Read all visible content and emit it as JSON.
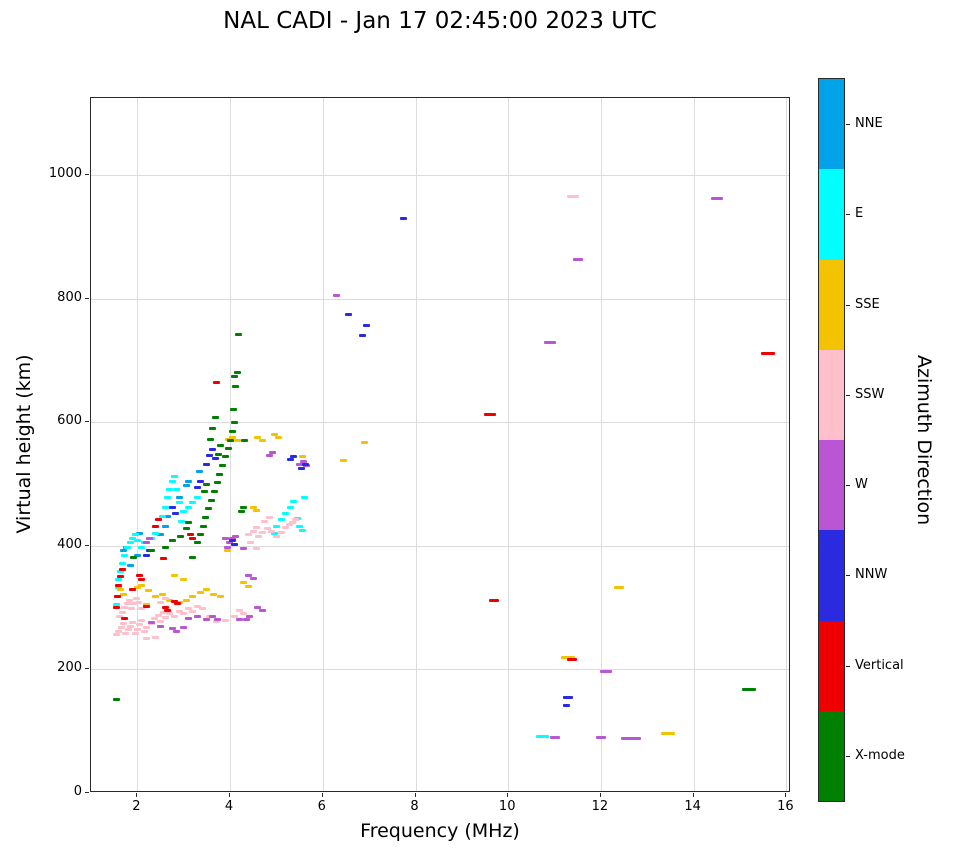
{
  "chart_data": {
    "type": "scatter",
    "title": "NAL CADI - Jan 17 02:45:00 2023 UTC",
    "xlabel": "Frequency (MHz)",
    "ylabel": "Virtual height (km)",
    "xlim": [
      1,
      16.1
    ],
    "ylim": [
      0,
      1125
    ],
    "xticks": [
      2,
      4,
      6,
      8,
      10,
      12,
      14,
      16
    ],
    "yticks": [
      0,
      200,
      400,
      600,
      800,
      1000
    ],
    "grid": true,
    "marker": "horizontal-dash",
    "colorbar": {
      "label": "Azimuth Direction",
      "categories_top_to_bottom": [
        {
          "label": "NNE",
          "color": "#00a2e8"
        },
        {
          "label": "E",
          "color": "#00ffff"
        },
        {
          "label": "SSE",
          "color": "#f3c300"
        },
        {
          "label": "SSW",
          "color": "#ffc0cb"
        },
        {
          "label": "W",
          "color": "#ba55d3"
        },
        {
          "label": "NNW",
          "color": "#2a2ae0"
        },
        {
          "label": "Vertical",
          "color": "#ee0000"
        },
        {
          "label": "X-mode",
          "color": "#008000"
        }
      ]
    },
    "series": [
      {
        "name": "NNE",
        "color": "#00a2e8",
        "points": [
          [
            1.7,
            392
          ],
          [
            1.76,
            398
          ],
          [
            2.05,
            420
          ],
          [
            2.5,
            418
          ],
          [
            2.6,
            432
          ],
          [
            2.66,
            448
          ],
          [
            2.9,
            478
          ],
          [
            3.05,
            498
          ],
          [
            3.1,
            505
          ],
          [
            3.35,
            520
          ],
          [
            2.0,
            385
          ],
          [
            1.85,
            368
          ]
        ]
      },
      {
        "name": "E",
        "color": "#00ffff",
        "points": [
          [
            1.58,
            318
          ],
          [
            1.6,
            332
          ],
          [
            1.6,
            345
          ],
          [
            1.63,
            358
          ],
          [
            1.68,
            372
          ],
          [
            1.72,
            385
          ],
          [
            1.78,
            398
          ],
          [
            1.85,
            405
          ],
          [
            1.9,
            412
          ],
          [
            1.96,
            418
          ],
          [
            2.0,
            408
          ],
          [
            2.1,
            398
          ],
          [
            2.16,
            405
          ],
          [
            2.3,
            412
          ],
          [
            2.4,
            420
          ],
          [
            2.55,
            448
          ],
          [
            2.6,
            462
          ],
          [
            2.65,
            478
          ],
          [
            2.7,
            492
          ],
          [
            2.75,
            505
          ],
          [
            2.8,
            512
          ],
          [
            2.85,
            492
          ],
          [
            2.9,
            470
          ],
          [
            3.0,
            455
          ],
          [
            3.1,
            462
          ],
          [
            3.2,
            470
          ],
          [
            2.96,
            440
          ],
          [
            3.3,
            478
          ],
          [
            4.95,
            420
          ],
          [
            5.0,
            432
          ],
          [
            5.1,
            442
          ],
          [
            5.2,
            452
          ],
          [
            5.3,
            462
          ],
          [
            5.36,
            472
          ],
          [
            5.45,
            445
          ],
          [
            5.5,
            432
          ],
          [
            5.56,
            425
          ],
          [
            5.6,
            478
          ],
          [
            10.75,
            92,
            13
          ],
          [
            1.55,
            305
          ]
        ]
      },
      {
        "name": "SSE",
        "color": "#f3c300",
        "points": [
          [
            1.63,
            330
          ],
          [
            1.7,
            322
          ],
          [
            2.0,
            332
          ],
          [
            2.1,
            336
          ],
          [
            2.25,
            328
          ],
          [
            2.4,
            318
          ],
          [
            2.55,
            322
          ],
          [
            2.7,
            312
          ],
          [
            2.9,
            308
          ],
          [
            3.05,
            312
          ],
          [
            3.2,
            318
          ],
          [
            3.36,
            325
          ],
          [
            3.5,
            330
          ],
          [
            3.65,
            322
          ],
          [
            3.8,
            318
          ],
          [
            3.95,
            393
          ],
          [
            3.96,
            572
          ],
          [
            4.06,
            576
          ],
          [
            4.16,
            570
          ],
          [
            4.6,
            576
          ],
          [
            4.7,
            570
          ],
          [
            4.95,
            580
          ],
          [
            5.05,
            575
          ],
          [
            5.56,
            545
          ],
          [
            6.45,
            538
          ],
          [
            6.9,
            568
          ],
          [
            12.4,
            333,
            10
          ],
          [
            11.3,
            220,
            14
          ],
          [
            13.45,
            97,
            14
          ],
          [
            3.0,
            345
          ],
          [
            2.8,
            352
          ],
          [
            4.3,
            340
          ],
          [
            4.4,
            335
          ],
          [
            2.2,
            305
          ],
          [
            4.5,
            462
          ],
          [
            4.56,
            458
          ]
        ]
      },
      {
        "name": "SSW",
        "color": "#ffc0cb",
        "points": [
          [
            1.55,
            256
          ],
          [
            1.6,
            262
          ],
          [
            1.65,
            268
          ],
          [
            1.7,
            274
          ],
          [
            1.75,
            258
          ],
          [
            1.8,
            264
          ],
          [
            1.85,
            270
          ],
          [
            1.9,
            276
          ],
          [
            1.95,
            258
          ],
          [
            2.0,
            264
          ],
          [
            2.05,
            272
          ],
          [
            2.1,
            280
          ],
          [
            2.15,
            262
          ],
          [
            2.2,
            268
          ],
          [
            2.3,
            274
          ],
          [
            2.36,
            282
          ],
          [
            2.45,
            288
          ],
          [
            2.5,
            278
          ],
          [
            2.56,
            292
          ],
          [
            2.6,
            284
          ],
          [
            2.7,
            290
          ],
          [
            2.8,
            286
          ],
          [
            2.9,
            294
          ],
          [
            3.0,
            290
          ],
          [
            3.1,
            298
          ],
          [
            3.2,
            294
          ],
          [
            3.3,
            302
          ],
          [
            3.4,
            298
          ],
          [
            1.62,
            286
          ],
          [
            1.68,
            292
          ],
          [
            1.72,
            300
          ],
          [
            1.78,
            306
          ],
          [
            1.82,
            312
          ],
          [
            1.88,
            298
          ],
          [
            1.92,
            306
          ],
          [
            1.98,
            315
          ],
          [
            2.02,
            308
          ],
          [
            2.08,
            298
          ],
          [
            2.5,
            308
          ],
          [
            2.6,
            315
          ],
          [
            4.4,
            418
          ],
          [
            4.5,
            424
          ],
          [
            4.56,
            430
          ],
          [
            4.62,
            415
          ],
          [
            4.7,
            421
          ],
          [
            4.8,
            428
          ],
          [
            4.9,
            424
          ],
          [
            5.0,
            416
          ],
          [
            5.1,
            421
          ],
          [
            5.2,
            429
          ],
          [
            5.28,
            434
          ],
          [
            4.45,
            405
          ],
          [
            4.58,
            396
          ],
          [
            4.75,
            440
          ],
          [
            4.85,
            446
          ],
          [
            5.35,
            438
          ],
          [
            5.42,
            442
          ],
          [
            11.4,
            965,
            12
          ],
          [
            4.2,
            295
          ],
          [
            4.3,
            290
          ],
          [
            4.1,
            285
          ],
          [
            3.9,
            280
          ],
          [
            3.7,
            278
          ],
          [
            3.56,
            285
          ],
          [
            2.4,
            252
          ],
          [
            2.2,
            250
          ]
        ]
      },
      {
        "name": "W",
        "color": "#ba55d3",
        "points": [
          [
            2.3,
            276
          ],
          [
            2.5,
            270
          ],
          [
            2.75,
            266
          ],
          [
            3.1,
            282
          ],
          [
            3.3,
            286
          ],
          [
            3.5,
            281
          ],
          [
            3.62,
            286
          ],
          [
            3.72,
            281
          ],
          [
            3.9,
            412
          ],
          [
            3.98,
            406
          ],
          [
            4.05,
            412
          ],
          [
            4.12,
            416
          ],
          [
            3.95,
            398
          ],
          [
            4.3,
            396
          ],
          [
            4.36,
            281
          ],
          [
            4.42,
            286
          ],
          [
            4.2,
            281
          ],
          [
            5.5,
            532
          ],
          [
            5.58,
            536
          ],
          [
            4.85,
            546
          ],
          [
            4.92,
            551
          ],
          [
            4.4,
            352
          ],
          [
            4.5,
            348
          ],
          [
            6.3,
            805
          ],
          [
            11.5,
            863,
            10
          ],
          [
            10.9,
            730,
            12
          ],
          [
            14.5,
            963,
            12
          ],
          [
            12.1,
            197,
            12
          ],
          [
            12.0,
            90,
            10
          ],
          [
            12.65,
            88,
            20
          ],
          [
            11.0,
            90,
            10
          ],
          [
            2.85,
            262
          ],
          [
            3.0,
            268
          ],
          [
            4.6,
            300
          ],
          [
            4.7,
            295
          ],
          [
            2.2,
            405
          ],
          [
            2.26,
            412
          ],
          [
            5.65,
            530
          ]
        ]
      },
      {
        "name": "NNW",
        "color": "#2a2ae0",
        "points": [
          [
            3.5,
            532
          ],
          [
            3.56,
            546
          ],
          [
            3.62,
            556
          ],
          [
            3.68,
            541
          ],
          [
            2.75,
            462
          ],
          [
            2.82,
            452
          ],
          [
            5.55,
            526
          ],
          [
            5.62,
            531
          ],
          [
            4.05,
            408
          ],
          [
            4.1,
            403
          ],
          [
            6.55,
            775
          ],
          [
            6.85,
            740
          ],
          [
            6.95,
            757
          ],
          [
            7.75,
            930
          ],
          [
            11.3,
            155,
            10
          ],
          [
            11.25,
            142
          ],
          [
            3.3,
            495
          ],
          [
            3.36,
            505
          ],
          [
            2.2,
            385
          ],
          [
            2.26,
            392
          ],
          [
            5.3,
            540
          ],
          [
            5.36,
            545
          ]
        ]
      },
      {
        "name": "Vertical",
        "color": "#ee0000",
        "points": [
          [
            1.55,
            300
          ],
          [
            1.58,
            318
          ],
          [
            1.6,
            336
          ],
          [
            1.64,
            350
          ],
          [
            1.68,
            362
          ],
          [
            2.4,
            432
          ],
          [
            2.46,
            442
          ],
          [
            2.2,
            302
          ],
          [
            2.6,
            300
          ],
          [
            2.66,
            296
          ],
          [
            2.8,
            310
          ],
          [
            2.86,
            306
          ],
          [
            3.7,
            665
          ],
          [
            9.6,
            612,
            12
          ],
          [
            9.7,
            312,
            10
          ],
          [
            15.6,
            712,
            14
          ],
          [
            11.38,
            216,
            10
          ],
          [
            2.05,
            352
          ],
          [
            2.1,
            345
          ],
          [
            1.9,
            330
          ],
          [
            3.15,
            418
          ],
          [
            3.2,
            412
          ],
          [
            2.56,
            380
          ],
          [
            1.72,
            282
          ]
        ]
      },
      {
        "name": "X-mode",
        "color": "#008000",
        "points": [
          [
            3.3,
            405
          ],
          [
            3.36,
            418
          ],
          [
            3.42,
            432
          ],
          [
            3.48,
            446
          ],
          [
            3.54,
            460
          ],
          [
            3.6,
            474
          ],
          [
            3.66,
            488
          ],
          [
            3.72,
            502
          ],
          [
            3.78,
            516
          ],
          [
            3.84,
            530
          ],
          [
            3.9,
            545
          ],
          [
            3.96,
            558
          ],
          [
            4.0,
            570
          ],
          [
            4.06,
            585
          ],
          [
            4.1,
            600
          ],
          [
            4.08,
            620
          ],
          [
            4.12,
            658
          ],
          [
            4.1,
            675
          ],
          [
            4.16,
            680
          ],
          [
            4.18,
            742
          ],
          [
            3.62,
            590
          ],
          [
            3.68,
            608
          ],
          [
            3.58,
            572
          ],
          [
            2.3,
            392
          ],
          [
            1.92,
            382
          ],
          [
            4.3,
            462
          ],
          [
            4.24,
            456
          ],
          [
            3.2,
            382
          ],
          [
            2.92,
            416
          ],
          [
            1.55,
            152
          ],
          [
            15.2,
            168,
            14
          ],
          [
            3.76,
            548
          ],
          [
            3.8,
            562
          ],
          [
            3.5,
            500
          ],
          [
            3.44,
            488
          ],
          [
            2.6,
            398
          ],
          [
            2.76,
            408
          ],
          [
            3.05,
            428
          ],
          [
            3.1,
            438
          ],
          [
            4.32,
            570
          ]
        ]
      }
    ]
  }
}
